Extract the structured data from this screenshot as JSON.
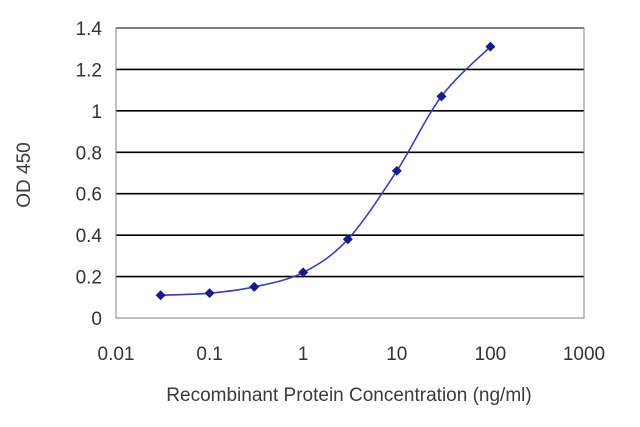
{
  "chart_data": {
    "type": "line",
    "title": "",
    "xlabel": "Recombinant Protein Concentration (ng/ml)",
    "ylabel": "OD 450",
    "x_scale": "log",
    "xlim": [
      0.01,
      1000
    ],
    "ylim": [
      0,
      1.4
    ],
    "x_ticks": [
      "0.01",
      "0.1",
      "1",
      "10",
      "100",
      "1000"
    ],
    "y_ticks": [
      "0",
      "0.2",
      "0.4",
      "0.6",
      "0.8",
      "1",
      "1.2",
      "1.4"
    ],
    "grid": "horizontal",
    "legend": "none",
    "series": [
      {
        "x": [
          0.03,
          0.1,
          0.3,
          1,
          3,
          10,
          30,
          100
        ],
        "y": [
          0.11,
          0.12,
          0.15,
          0.22,
          0.38,
          0.71,
          1.07,
          1.31
        ]
      }
    ],
    "colors": {
      "line": "#3b3fb0",
      "marker": "#1a1a8c",
      "grid": "#000000",
      "frame": "#808080"
    }
  }
}
